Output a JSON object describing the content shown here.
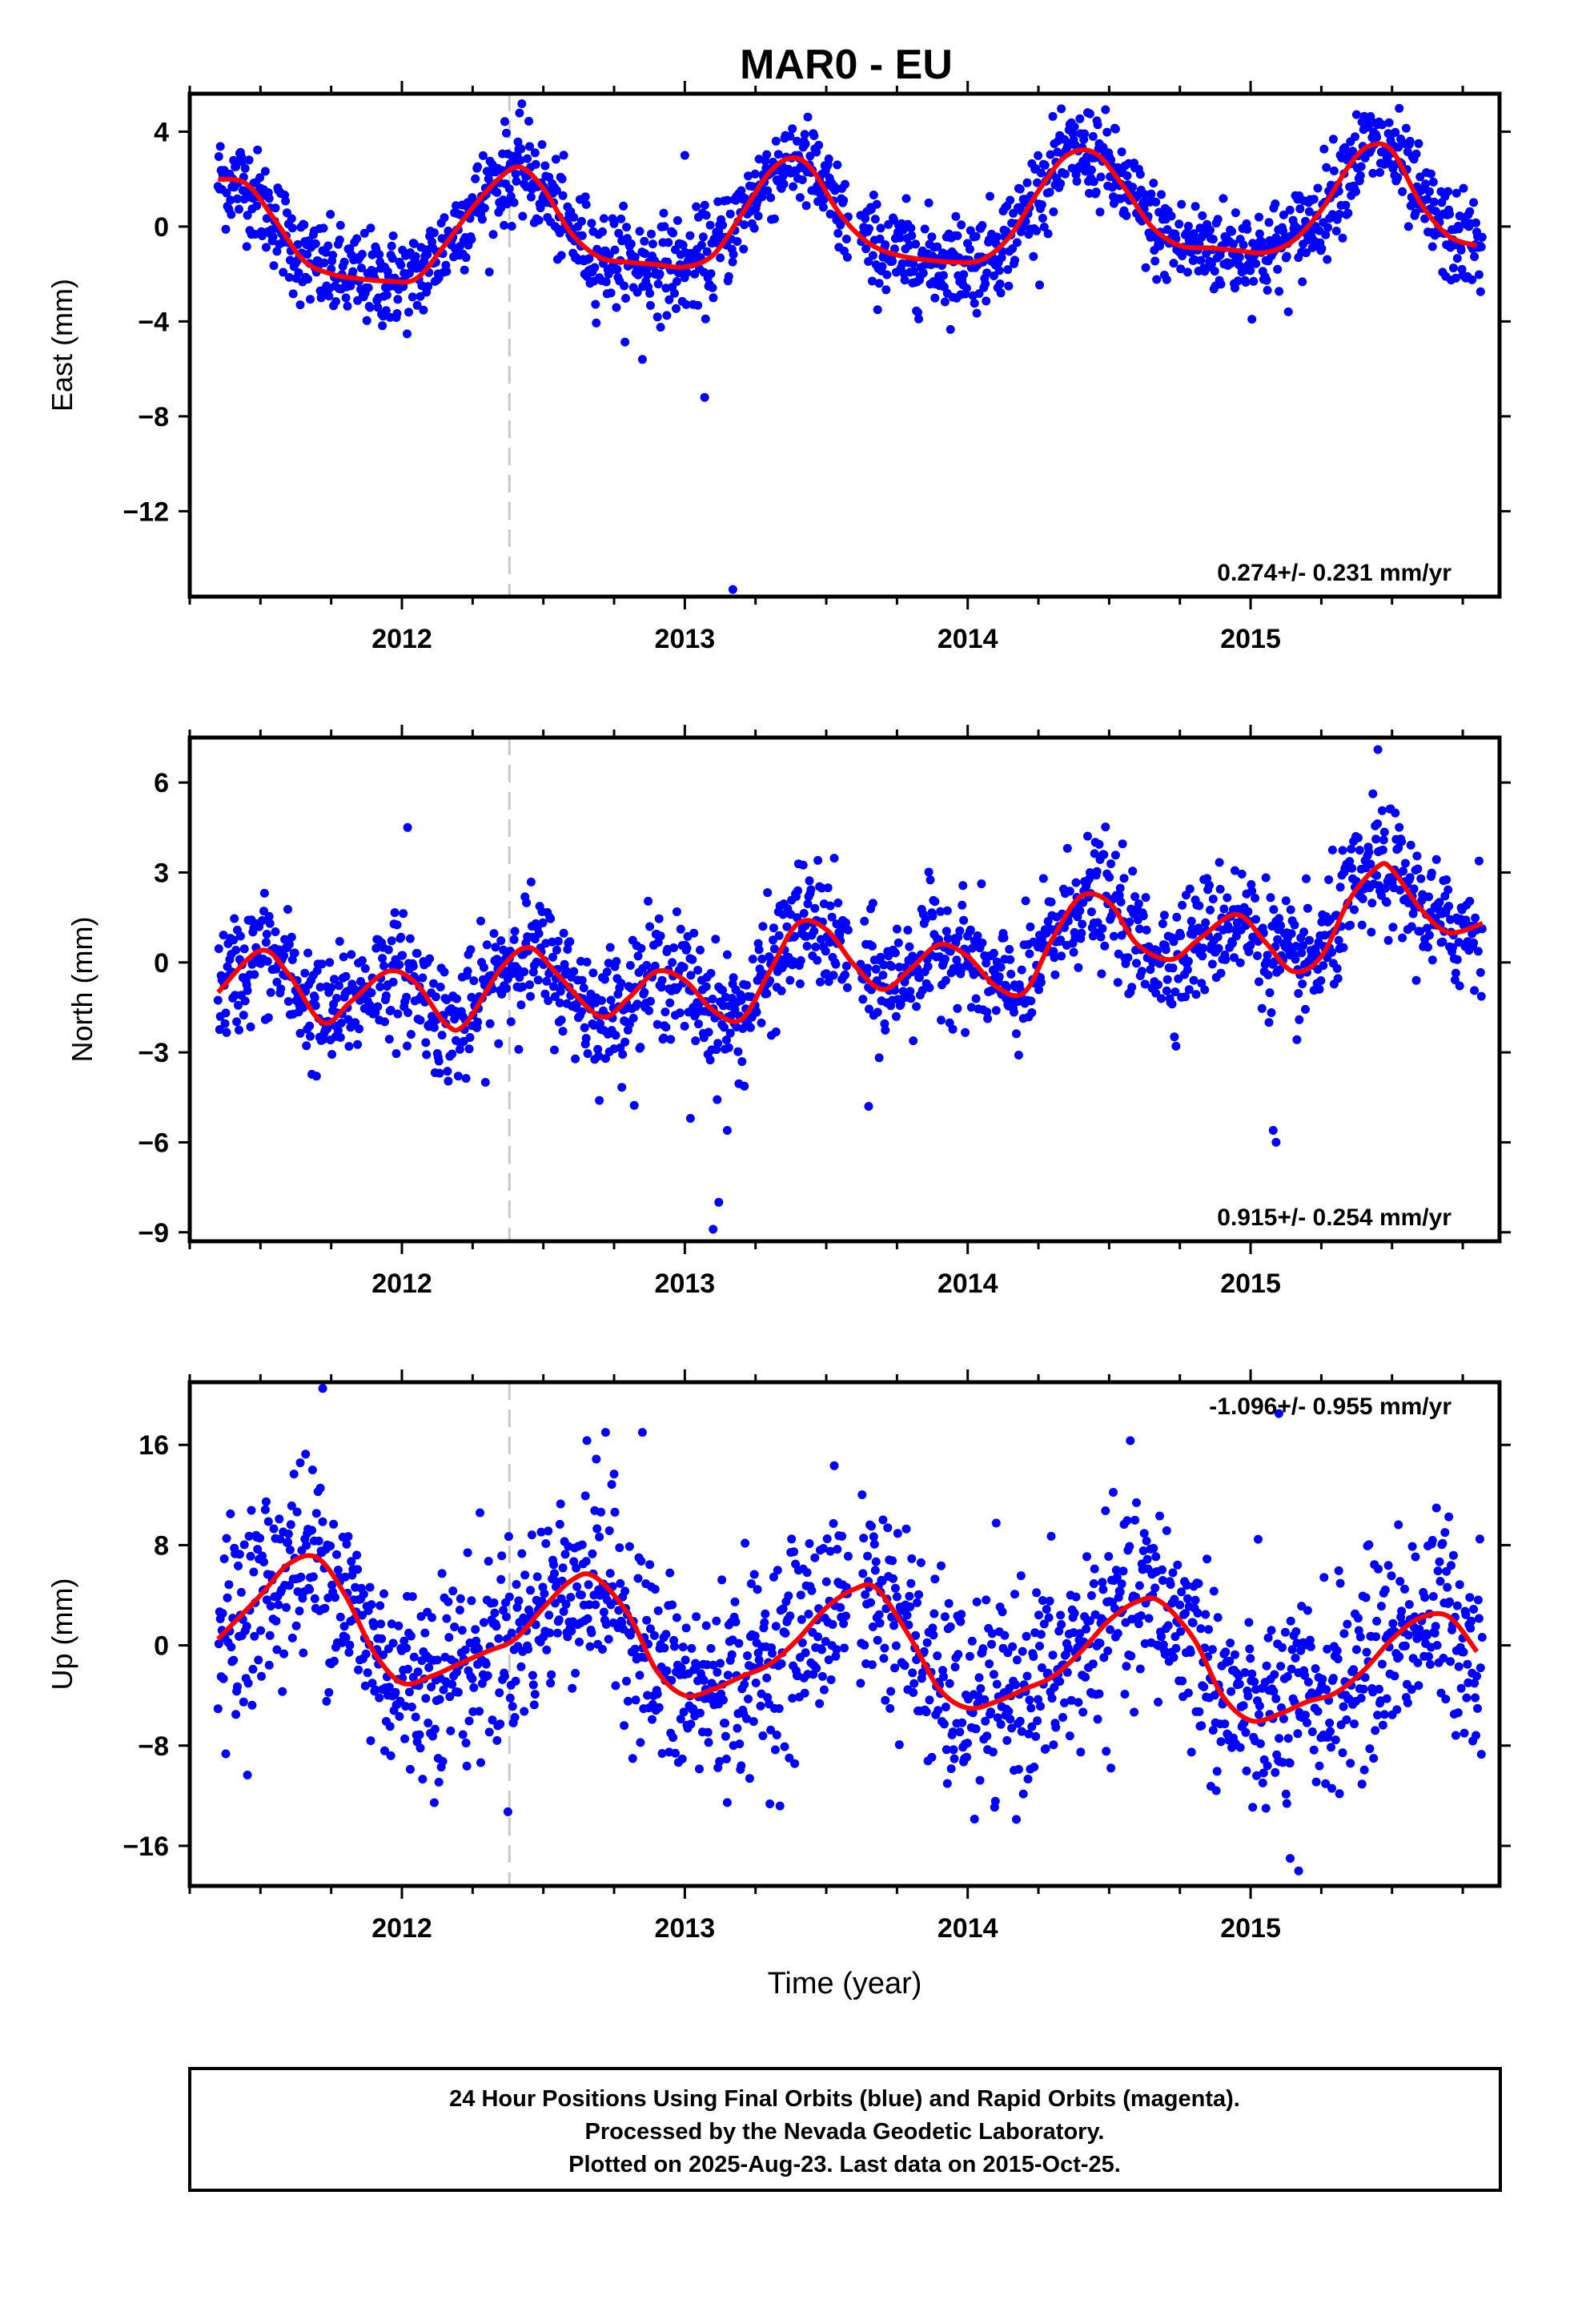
{
  "title": "MAR0 - EU",
  "footer": {
    "line1": "24 Hour Positions Using Final Orbits (blue) and Rapid Orbits (magenta).",
    "line2": "Processed by the Nevada Geodetic Laboratory.",
    "line3": "Plotted on 2025-Aug-23. Last data on 2015-Oct-25."
  },
  "colors": {
    "points": "#0000ff",
    "fit": "#ff0000",
    "event_line": "#c8c8c8",
    "frame": "#000000"
  },
  "chart_data": [
    {
      "type": "scatter",
      "panel": "east",
      "ylabel": "East (mm)",
      "xlabel": "",
      "xlim": [
        2011.25,
        2015.88
      ],
      "ylim": [
        -15.6,
        5.6
      ],
      "yticks": [
        4,
        0,
        -4,
        -8,
        -12
      ],
      "xticks": [
        2012,
        2013,
        2014,
        2015
      ],
      "grid": false,
      "rate_label": "0.274+/- 0.231 mm/yr",
      "rate_position": "bottom-right",
      "event_line_x": 2012.38,
      "fit_curve": {
        "x": [
          2011.35,
          2011.45,
          2011.55,
          2011.65,
          2011.75,
          2011.85,
          2011.95,
          2012.05,
          2012.15,
          2012.25,
          2012.35,
          2012.42,
          2012.5,
          2012.6,
          2012.7,
          2012.8,
          2012.9,
          2013.0,
          2013.1,
          2013.2,
          2013.3,
          2013.38,
          2013.45,
          2013.55,
          2013.65,
          2013.75,
          2013.85,
          2013.95,
          2014.05,
          2014.15,
          2014.25,
          2014.35,
          2014.45,
          2014.55,
          2014.65,
          2014.75,
          2014.85,
          2014.95,
          2015.05,
          2015.15,
          2015.25,
          2015.35,
          2015.42,
          2015.5,
          2015.6,
          2015.7,
          2015.8
        ],
        "y": [
          2.0,
          1.8,
          0.3,
          -1.4,
          -2.0,
          -2.2,
          -2.3,
          -2.2,
          -0.8,
          0.8,
          2.1,
          2.5,
          1.6,
          -0.3,
          -1.3,
          -1.5,
          -1.6,
          -1.7,
          -1.2,
          0.5,
          2.3,
          2.9,
          2.4,
          0.5,
          -0.7,
          -1.2,
          -1.4,
          -1.5,
          -1.4,
          -0.4,
          1.5,
          3.0,
          3.1,
          1.7,
          0.0,
          -0.8,
          -0.9,
          -1.0,
          -1.1,
          -0.6,
          0.7,
          2.6,
          3.4,
          3.2,
          1.0,
          -0.4,
          -0.8
        ]
      },
      "series": [
        {
          "trend": [
            [
              2011.35,
              2.0
            ],
            [
              2011.45,
              1.8
            ],
            [
              2011.55,
              0.3
            ],
            [
              2011.65,
              -1.4
            ],
            [
              2011.75,
              -2.0
            ],
            [
              2011.85,
              -2.2
            ],
            [
              2011.95,
              -2.3
            ],
            [
              2012.05,
              -2.2
            ],
            [
              2012.15,
              -0.8
            ],
            [
              2012.25,
              0.8
            ],
            [
              2012.35,
              2.1
            ],
            [
              2012.42,
              2.5
            ],
            [
              2012.5,
              1.6
            ],
            [
              2012.6,
              -0.3
            ],
            [
              2012.7,
              -1.3
            ],
            [
              2012.8,
              -1.5
            ],
            [
              2012.9,
              -1.6
            ],
            [
              2013.0,
              -1.7
            ],
            [
              2013.1,
              -1.2
            ],
            [
              2013.2,
              0.5
            ],
            [
              2013.3,
              2.3
            ],
            [
              2013.38,
              2.9
            ],
            [
              2013.45,
              2.4
            ],
            [
              2013.55,
              0.5
            ],
            [
              2013.65,
              -0.7
            ],
            [
              2013.75,
              -1.2
            ],
            [
              2013.85,
              -1.4
            ],
            [
              2013.95,
              -1.5
            ],
            [
              2014.05,
              -1.4
            ],
            [
              2014.15,
              -0.4
            ],
            [
              2014.25,
              1.5
            ],
            [
              2014.35,
              3.0
            ],
            [
              2014.45,
              3.1
            ],
            [
              2014.55,
              1.7
            ],
            [
              2014.65,
              0.0
            ],
            [
              2014.75,
              -0.8
            ],
            [
              2014.85,
              -0.9
            ],
            [
              2014.95,
              -1.0
            ],
            [
              2015.05,
              -1.1
            ],
            [
              2015.15,
              -0.6
            ],
            [
              2015.25,
              0.7
            ],
            [
              2015.35,
              2.6
            ],
            [
              2015.42,
              3.4
            ],
            [
              2015.5,
              3.2
            ],
            [
              2015.6,
              1.0
            ],
            [
              2015.7,
              -0.4
            ],
            [
              2015.8,
              -0.8
            ]
          ],
          "noise": 1.0
        }
      ],
      "outliers": {
        "x": [
          2013.07,
          2013.17,
          2012.85,
          2013.0
        ],
        "y": [
          -7.2,
          -15.3,
          -5.6,
          3.0
        ]
      }
    },
    {
      "type": "scatter",
      "panel": "north",
      "ylabel": "North (mm)",
      "xlabel": "",
      "xlim": [
        2011.25,
        2015.88
      ],
      "ylim": [
        -9.3,
        7.5
      ],
      "yticks": [
        6,
        3,
        0,
        -3,
        -6,
        -9
      ],
      "xticks": [
        2012,
        2013,
        2014,
        2015
      ],
      "grid": false,
      "rate_label": "0.915+/- 0.254 mm/yr",
      "rate_position": "bottom-right",
      "event_line_x": 2012.38,
      "fit_curve": {
        "x": [
          2011.35,
          2011.5,
          2011.6,
          2011.72,
          2011.82,
          2011.95,
          2012.05,
          2012.15,
          2012.22,
          2012.35,
          2012.45,
          2012.55,
          2012.7,
          2012.8,
          2012.9,
          2013.0,
          2013.1,
          2013.2,
          2013.3,
          2013.4,
          2013.5,
          2013.6,
          2013.7,
          2013.8,
          2013.9,
          2014.0,
          2014.1,
          2014.2,
          2014.3,
          2014.4,
          2014.5,
          2014.6,
          2014.72,
          2014.82,
          2014.95,
          2015.05,
          2015.15,
          2015.25,
          2015.35,
          2015.45,
          2015.5,
          2015.6,
          2015.7,
          2015.82
        ],
        "y": [
          -1.0,
          0.4,
          -0.4,
          -2.0,
          -1.3,
          -0.3,
          -0.7,
          -2.0,
          -2.1,
          -0.2,
          0.5,
          -0.4,
          -1.8,
          -1.2,
          -0.3,
          -0.6,
          -1.6,
          -1.9,
          -0.3,
          1.3,
          1.1,
          -0.1,
          -0.9,
          -0.2,
          0.6,
          0.2,
          -0.8,
          -1.0,
          0.8,
          2.2,
          2.0,
          0.6,
          0.1,
          0.8,
          1.6,
          0.7,
          -0.3,
          0.2,
          2.1,
          3.2,
          3.1,
          1.8,
          1.0,
          1.3
        ]
      },
      "series": [
        {
          "trend": [
            [
              2011.35,
              -1.0
            ],
            [
              2011.5,
              0.4
            ],
            [
              2011.6,
              -0.4
            ],
            [
              2011.72,
              -2.0
            ],
            [
              2011.82,
              -1.3
            ],
            [
              2011.95,
              -0.3
            ],
            [
              2012.05,
              -0.7
            ],
            [
              2012.15,
              -2.0
            ],
            [
              2012.22,
              -2.1
            ],
            [
              2012.35,
              -0.2
            ],
            [
              2012.45,
              0.5
            ],
            [
              2012.55,
              -0.4
            ],
            [
              2012.7,
              -1.8
            ],
            [
              2012.8,
              -1.2
            ],
            [
              2012.9,
              -0.3
            ],
            [
              2013.0,
              -0.6
            ],
            [
              2013.1,
              -1.6
            ],
            [
              2013.2,
              -1.9
            ],
            [
              2013.3,
              -0.3
            ],
            [
              2013.4,
              1.3
            ],
            [
              2013.5,
              1.1
            ],
            [
              2013.6,
              -0.1
            ],
            [
              2013.7,
              -0.9
            ],
            [
              2013.8,
              -0.2
            ],
            [
              2013.9,
              0.6
            ],
            [
              2014.0,
              0.2
            ],
            [
              2014.1,
              -0.8
            ],
            [
              2014.2,
              -1.0
            ],
            [
              2014.3,
              0.8
            ],
            [
              2014.4,
              2.2
            ],
            [
              2014.5,
              2.0
            ],
            [
              2014.6,
              0.6
            ],
            [
              2014.72,
              0.1
            ],
            [
              2014.82,
              0.8
            ],
            [
              2014.95,
              1.6
            ],
            [
              2015.05,
              0.7
            ],
            [
              2015.15,
              -0.3
            ],
            [
              2015.25,
              0.2
            ],
            [
              2015.35,
              2.1
            ],
            [
              2015.45,
              3.2
            ],
            [
              2015.5,
              3.1
            ],
            [
              2015.6,
              1.8
            ],
            [
              2015.7,
              1.0
            ],
            [
              2015.82,
              1.3
            ]
          ],
          "noise": 1.0
        }
      ],
      "outliers": {
        "x": [
          2013.15,
          2013.12,
          2013.1,
          2015.08,
          2015.09,
          2012.02,
          2015.45,
          2013.02,
          2013.65
        ],
        "y": [
          -5.6,
          -8.0,
          -8.9,
          -5.6,
          -6.0,
          4.5,
          7.1,
          -5.2,
          -4.8
        ]
      }
    },
    {
      "type": "scatter",
      "panel": "up",
      "ylabel": "Up (mm)",
      "xlabel": "Time (year)",
      "xlim": [
        2011.25,
        2015.88
      ],
      "ylim": [
        -19.2,
        21.0
      ],
      "yticks": [
        16,
        8,
        0,
        -8,
        -16
      ],
      "xticks": [
        2012,
        2013,
        2014,
        2015
      ],
      "grid": false,
      "rate_label": "-1.096+/- 0.955 mm/yr",
      "rate_position": "top-right",
      "event_line_x": 2012.38,
      "fit_curve": {
        "x": [
          2011.35,
          2011.5,
          2011.6,
          2011.7,
          2011.8,
          2011.9,
          2012.0,
          2012.1,
          2012.2,
          2012.3,
          2012.4,
          2012.5,
          2012.6,
          2012.68,
          2012.8,
          2012.9,
          2013.0,
          2013.1,
          2013.2,
          2013.3,
          2013.4,
          2013.5,
          2013.6,
          2013.68,
          2013.8,
          2013.9,
          2014.0,
          2014.1,
          2014.2,
          2014.3,
          2014.4,
          2014.5,
          2014.6,
          2014.68,
          2014.8,
          2014.9,
          2015.0,
          2015.1,
          2015.2,
          2015.3,
          2015.4,
          2015.5,
          2015.6,
          2015.7,
          2015.8
        ],
        "y": [
          0.5,
          4.0,
          6.5,
          7.0,
          4.0,
          -0.5,
          -3.0,
          -2.5,
          -1.5,
          -0.5,
          0.5,
          3.0,
          5.2,
          5.5,
          2.5,
          -2.0,
          -4.0,
          -3.5,
          -2.5,
          -1.5,
          0.5,
          3.0,
          4.5,
          4.5,
          0.5,
          -3.5,
          -5.0,
          -4.5,
          -3.5,
          -2.5,
          -0.5,
          2.0,
          3.5,
          3.5,
          0.5,
          -4.0,
          -6.0,
          -5.5,
          -4.5,
          -3.8,
          -2.0,
          0.5,
          2.2,
          2.3,
          -0.5
        ]
      },
      "series": [
        {
          "trend": [
            [
              2011.35,
              0.5
            ],
            [
              2011.5,
              4.0
            ],
            [
              2011.6,
              6.5
            ],
            [
              2011.7,
              7.0
            ],
            [
              2011.8,
              4.0
            ],
            [
              2011.9,
              -0.5
            ],
            [
              2012.0,
              -3.0
            ],
            [
              2012.1,
              -2.5
            ],
            [
              2012.2,
              -1.5
            ],
            [
              2012.3,
              -0.5
            ],
            [
              2012.4,
              0.5
            ],
            [
              2012.5,
              3.0
            ],
            [
              2012.6,
              5.2
            ],
            [
              2012.68,
              5.5
            ],
            [
              2012.8,
              2.5
            ],
            [
              2012.9,
              -2.0
            ],
            [
              2013.0,
              -4.0
            ],
            [
              2013.1,
              -3.5
            ],
            [
              2013.2,
              -2.5
            ],
            [
              2013.3,
              -1.5
            ],
            [
              2013.4,
              0.5
            ],
            [
              2013.5,
              3.0
            ],
            [
              2013.6,
              4.5
            ],
            [
              2013.68,
              4.5
            ],
            [
              2013.8,
              0.5
            ],
            [
              2013.9,
              -3.5
            ],
            [
              2014.0,
              -5.0
            ],
            [
              2014.1,
              -4.5
            ],
            [
              2014.2,
              -3.5
            ],
            [
              2014.3,
              -2.5
            ],
            [
              2014.4,
              -0.5
            ],
            [
              2014.5,
              2.0
            ],
            [
              2014.6,
              3.5
            ],
            [
              2014.68,
              3.5
            ],
            [
              2014.8,
              0.5
            ],
            [
              2014.9,
              -4.0
            ],
            [
              2015.0,
              -6.0
            ],
            [
              2015.1,
              -5.5
            ],
            [
              2015.2,
              -4.5
            ],
            [
              2015.3,
              -3.8
            ],
            [
              2015.4,
              -2.0
            ],
            [
              2015.5,
              0.5
            ],
            [
              2015.6,
              2.2
            ],
            [
              2015.7,
              2.3
            ],
            [
              2015.8,
              -0.5
            ]
          ],
          "noise": 4.0
        }
      ],
      "outliers": {
        "x": [
          2011.72,
          2015.1,
          2015.17,
          2015.14,
          2012.72,
          2012.85
        ],
        "y": [
          20.5,
          18.5,
          -18.0,
          -17.0,
          17.0,
          17.0
        ]
      }
    }
  ]
}
